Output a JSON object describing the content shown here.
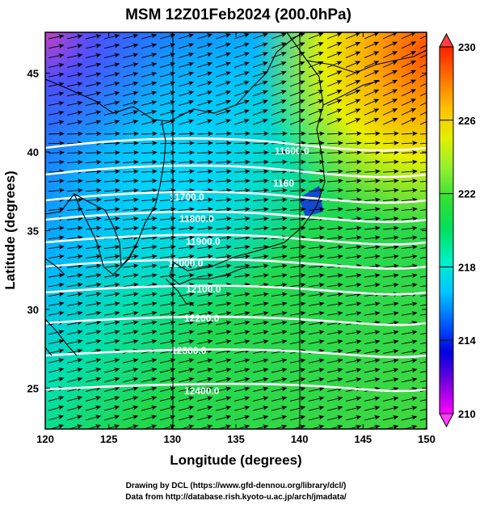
{
  "title": "MSM 12Z01Feb2024 (200.0hPa)",
  "xlabel": "Longitude (degrees)",
  "ylabel": "Latitude  (degrees)",
  "footer": {
    "line1": "Drawing by DCL (https://www.gfd-dennou.org/library/dcl/)",
    "line2": "Data from http://database.rish.kyoto-u.ac.jp/arch/jmadata/"
  },
  "map": {
    "lon_range": [
      120,
      150
    ],
    "lat_range": [
      22.4,
      47.6
    ],
    "x_ticks": [
      "120",
      "125",
      "130",
      "135",
      "140",
      "145",
      "150"
    ],
    "y_ticks": [
      "25",
      "30",
      "35",
      "40",
      "45"
    ],
    "grid_lons": [
      130,
      140
    ],
    "contour_labels": [
      "11600.0",
      "11700.0",
      "11800.0",
      "11900.0",
      "12000.0",
      "12100.0",
      "12200.0",
      "12300.0",
      "12400.0"
    ],
    "partial_label": "1160"
  },
  "colorbar": {
    "range": [
      210,
      230
    ],
    "tick_labels": [
      "210",
      "214",
      "218",
      "222",
      "226",
      "230"
    ],
    "colors": [
      "#ff00ff",
      "#7a00e0",
      "#0000e0",
      "#0060ff",
      "#00c8ff",
      "#00f0c8",
      "#00e060",
      "#30e030",
      "#90f030",
      "#e0f000",
      "#ffc000",
      "#ff7000",
      "#ff2000"
    ]
  }
}
